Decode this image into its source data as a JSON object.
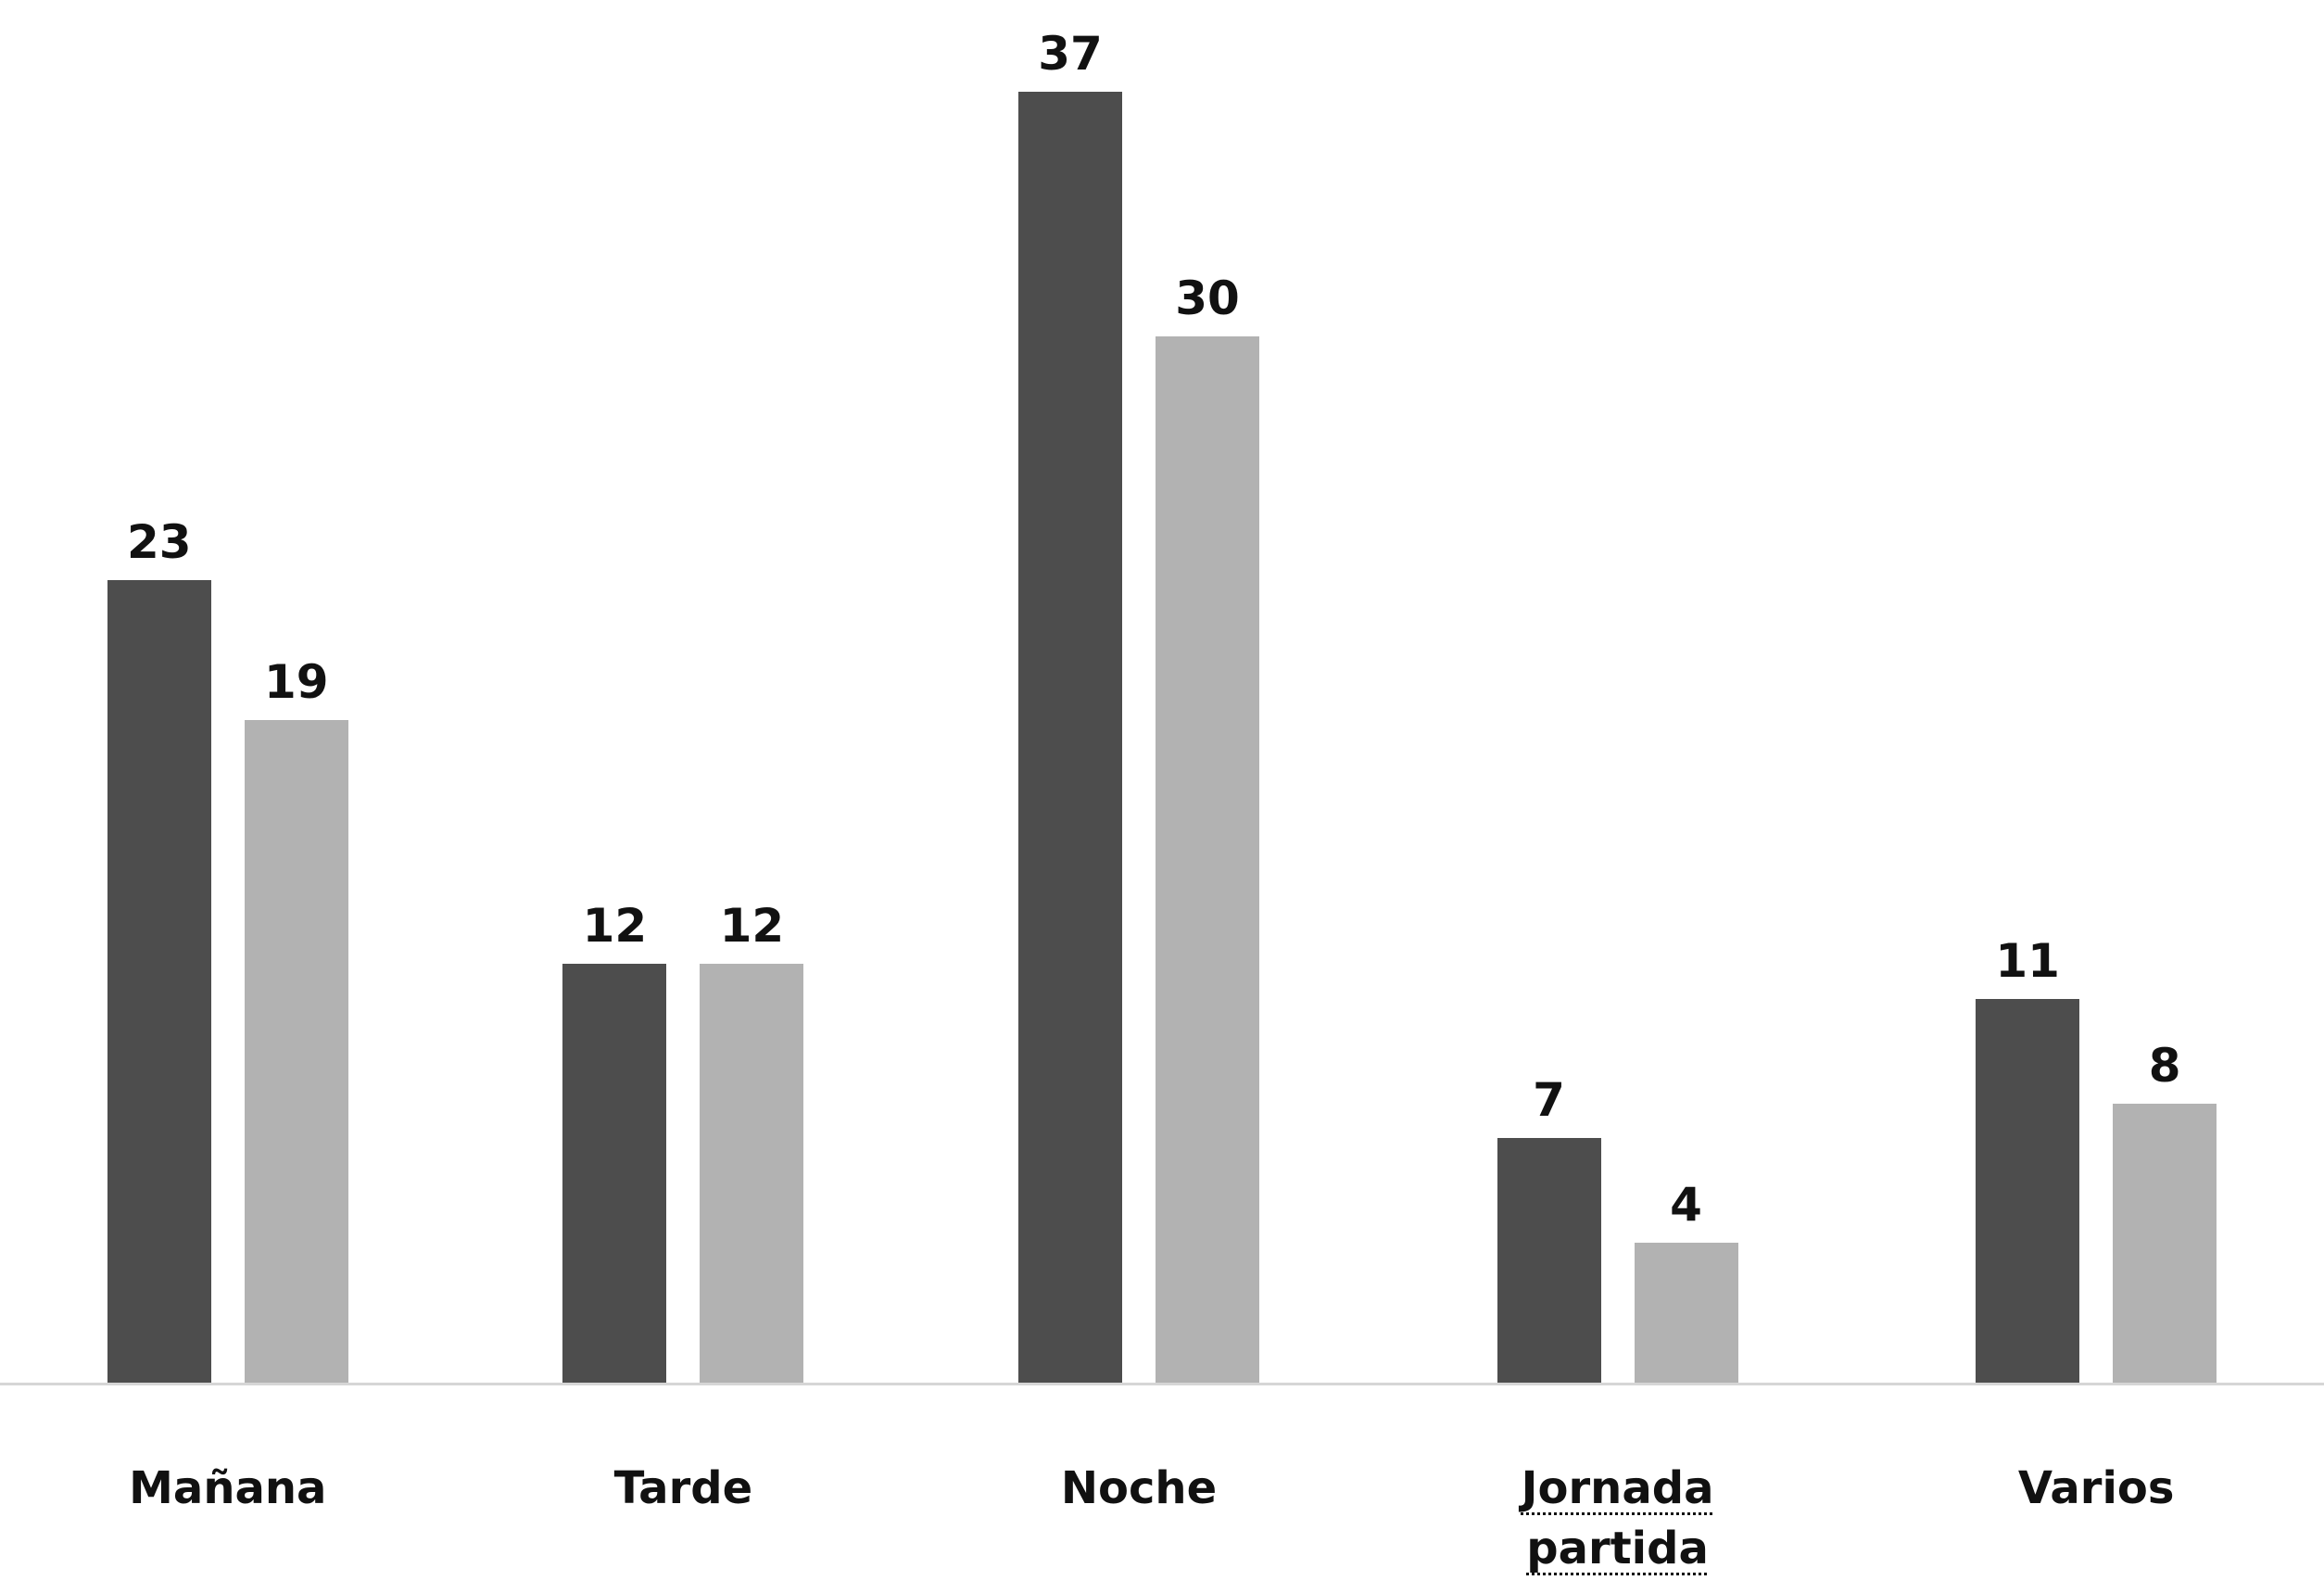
{
  "chart_data": {
    "type": "bar",
    "title": "",
    "xlabel": "",
    "ylabel": "",
    "categories": [
      "Mañana",
      "Tarde",
      "Noche",
      "Jornada partida",
      "Varios"
    ],
    "series": [
      {
        "name": "dark-series",
        "color": "#4d4d4d",
        "values": [
          23,
          12,
          37,
          7,
          11
        ]
      },
      {
        "name": "light-series",
        "color": "#b2b2b2",
        "values": [
          19,
          12,
          30,
          4,
          8
        ]
      }
    ],
    "ylim": [
      0,
      40
    ],
    "grid": false,
    "legend": "none",
    "data_labels": true,
    "baseline_color": "#d6d6d6",
    "underlined_category_index": 3
  }
}
